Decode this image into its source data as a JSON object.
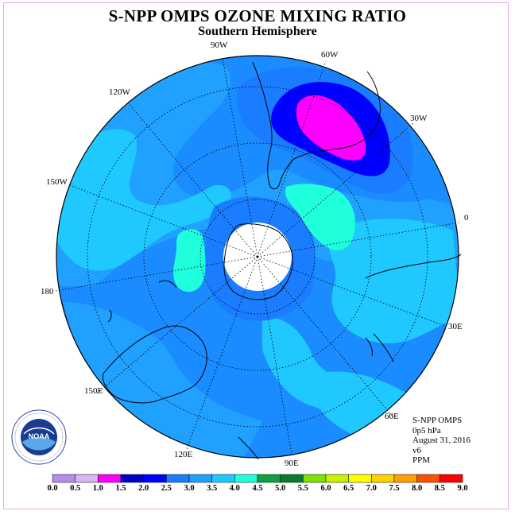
{
  "title": "S-NPP OMPS OZONE MIXING RATIO",
  "subtitle": "Southern Hemisphere",
  "longitude_labels": {
    "w90": "90W",
    "w60": "60W",
    "w30": "30W",
    "e0": "0",
    "w120": "120W",
    "w150": "150W",
    "e180": "180",
    "e30": "30E",
    "e60": "60E",
    "e90": "90E",
    "e120": "120E",
    "e150": "150E"
  },
  "info": {
    "instrument": "S-NPP OMPS",
    "level": "0p5 hPa",
    "date": "August 31, 2016",
    "version": "v6",
    "units": "PPM"
  },
  "colorbar": {
    "ticks": [
      "0.0",
      "0.5",
      "1.0",
      "1.5",
      "2.0",
      "2.5",
      "3.0",
      "3.5",
      "4.0",
      "4.5",
      "5.0",
      "5.5",
      "6.0",
      "6.5",
      "7.0",
      "7.5",
      "8.0",
      "8.5",
      "9.0"
    ],
    "colors": [
      "#b58de8",
      "#d8b4f0",
      "#ff00ff",
      "#0000cc",
      "#0000ff",
      "#1a7dff",
      "#20a0ff",
      "#1fc8ff",
      "#20ffdc",
      "#10a040",
      "#0a7a2e",
      "#80e000",
      "#c8f000",
      "#ffff00",
      "#ffd000",
      "#ffa000",
      "#ff5000",
      "#ff0000",
      "#8b4513"
    ]
  },
  "logo": {
    "text": "NOAA"
  },
  "colors": {
    "background_field": "#1a8cff",
    "light_field": "#1fc8ff",
    "mid_field": "#1a7dff",
    "low_field": "#0000ff",
    "lowest_field": "#0000cc",
    "core_min": "#ff00ff",
    "high_field": "#20ffdc"
  }
}
